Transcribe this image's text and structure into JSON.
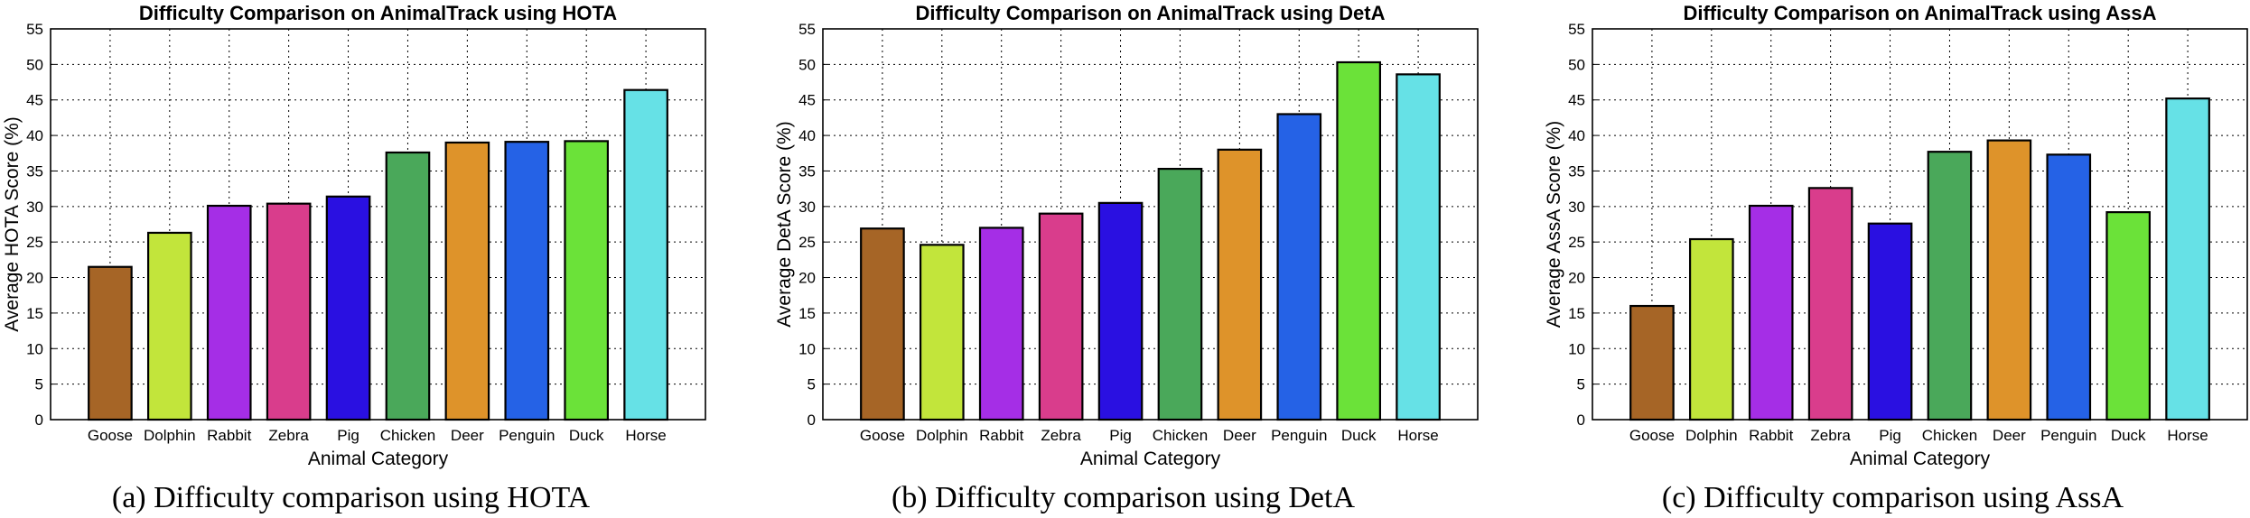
{
  "chart_data": [
    {
      "type": "bar",
      "title": "Difficulty Comparison on AnimalTrack using HOTA",
      "xlabel": "Animal Category",
      "ylabel": "Average HOTA Score (%)",
      "ylim": [
        0,
        55
      ],
      "yticks": [
        "0",
        "5",
        "10",
        "15",
        "20",
        "25",
        "30",
        "35",
        "40",
        "45",
        "50",
        "55"
      ],
      "grid": true,
      "categories": [
        "Goose",
        "Dolphin",
        "Rabbit",
        "Zebra",
        "Pig",
        "Chicken",
        "Deer",
        "Penguin",
        "Duck",
        "Horse"
      ],
      "values": [
        21.5,
        26.3,
        30.1,
        30.4,
        31.4,
        37.6,
        39.0,
        39.1,
        39.2,
        46.4
      ],
      "caption": "(a) Difficulty comparison using HOTA"
    },
    {
      "type": "bar",
      "title": "Difficulty Comparison on AnimalTrack using DetA",
      "xlabel": "Animal Category",
      "ylabel": "Average DetA Score (%)",
      "ylim": [
        0,
        55
      ],
      "yticks": [
        "0",
        "5",
        "10",
        "15",
        "20",
        "25",
        "30",
        "35",
        "40",
        "45",
        "50",
        "55"
      ],
      "grid": true,
      "categories": [
        "Goose",
        "Dolphin",
        "Rabbit",
        "Zebra",
        "Pig",
        "Chicken",
        "Deer",
        "Penguin",
        "Duck",
        "Horse"
      ],
      "values": [
        26.9,
        24.6,
        27.0,
        29.0,
        30.5,
        35.3,
        38.0,
        43.0,
        50.3,
        48.6
      ],
      "caption": "(b) Difficulty comparison using DetA"
    },
    {
      "type": "bar",
      "title": "Difficulty Comparison on AnimalTrack using AssA",
      "xlabel": "Animal Category",
      "ylabel": "Average AssA Score (%)",
      "ylim": [
        0,
        55
      ],
      "yticks": [
        "0",
        "5",
        "10",
        "15",
        "20",
        "25",
        "30",
        "35",
        "40",
        "45",
        "50",
        "55"
      ],
      "grid": true,
      "categories": [
        "Goose",
        "Dolphin",
        "Rabbit",
        "Zebra",
        "Pig",
        "Chicken",
        "Deer",
        "Penguin",
        "Duck",
        "Horse"
      ],
      "values": [
        16.0,
        25.4,
        30.1,
        32.6,
        27.6,
        37.7,
        39.3,
        37.3,
        29.2,
        45.2
      ],
      "caption": "(c) Difficulty comparison using AssA"
    }
  ],
  "colors": [
    "#a66526",
    "#c2e53b",
    "#a52ee6",
    "#d93d8c",
    "#2a10e1",
    "#4aa85a",
    "#de932a",
    "#2562e6",
    "#6be239",
    "#66e1e6"
  ]
}
